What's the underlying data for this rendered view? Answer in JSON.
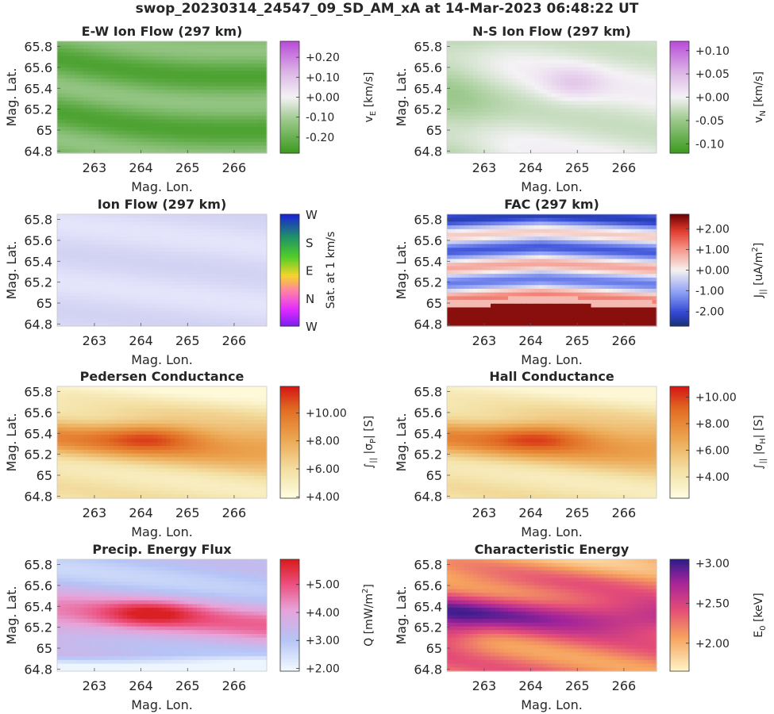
{
  "figure": {
    "title": "swop_20230314_24547_09_SD_AM_xA at 14-Mar-2023 06:48:22 UT"
  },
  "chart_data": [
    {
      "type": "heatmap",
      "title": "E-W Ion Flow (297 km)",
      "xlabel": "Mag. Lon.",
      "ylabel": "Mag. Lat.",
      "xlim": [
        262.2,
        266.7
      ],
      "ylim": [
        64.78,
        65.85
      ],
      "x_ticks": [
        263,
        264,
        265,
        266
      ],
      "y_ticks": [
        64.8,
        65,
        65.2,
        65.4,
        65.6,
        65.8
      ],
      "y_tick_labels": [
        "64.8",
        "65",
        "65.2",
        "65.4",
        "65.6",
        "65.8"
      ],
      "colorbar": {
        "label": "v_E [km/s]",
        "label_main": "v",
        "label_sub": "E",
        "label_suffix": " [km/s]",
        "range": [
          -0.28,
          0.28
        ],
        "ticks": [
          -0.2,
          -0.1,
          0,
          0.1,
          0.2
        ],
        "tick_labels": [
          "-0.20",
          "-0.10",
          "+0.00",
          "+0.10",
          "+0.20"
        ],
        "colormap": "green-white-purple"
      },
      "field": {
        "kind": "ewflow",
        "base": -0.19,
        "amp": 0.06
      }
    },
    {
      "type": "heatmap",
      "title": "N-S Ion Flow (297 km)",
      "xlabel": "Mag. Lon.",
      "ylabel": "Mag. Lat.",
      "xlim": [
        262.2,
        266.7
      ],
      "ylim": [
        64.78,
        65.85
      ],
      "x_ticks": [
        263,
        264,
        265,
        266
      ],
      "y_ticks": [
        64.8,
        65,
        65.2,
        65.4,
        65.6,
        65.8
      ],
      "y_tick_labels": [
        "64.8",
        "65",
        "65.2",
        "65.4",
        "65.6",
        "65.8"
      ],
      "colorbar": {
        "label": "v_N [km/s]",
        "label_main": "v",
        "label_sub": "N",
        "label_suffix": " [km/s]",
        "range": [
          -0.12,
          0.12
        ],
        "ticks": [
          -0.1,
          -0.05,
          0,
          0.05,
          0.1
        ],
        "tick_labels": [
          "-0.10",
          "-0.05",
          "+0.00",
          "+0.05",
          "+0.10"
        ],
        "colormap": "green-white-purple"
      },
      "field": {
        "kind": "nsflow",
        "base": -0.01,
        "amp": 0.03
      }
    },
    {
      "type": "heatmap",
      "title": "Ion Flow (297 km)",
      "xlabel": "Mag. Lon.",
      "ylabel": "Mag. Lat.",
      "xlim": [
        262.2,
        266.7
      ],
      "ylim": [
        64.78,
        65.85
      ],
      "x_ticks": [
        263,
        264,
        265,
        266
      ],
      "y_ticks": [
        64.8,
        65,
        65.2,
        65.4,
        65.6,
        65.8
      ],
      "y_tick_labels": [
        "64.8",
        "65",
        "65.2",
        "65.4",
        "65.6",
        "65.8"
      ],
      "colorbar": {
        "label": "Sat. at 1 km/s",
        "direction_labels": [
          "W",
          "N",
          "E",
          "S",
          "W"
        ],
        "colormap": "direction-wheel"
      },
      "field": {
        "kind": "direction",
        "tint": "#dcdcf6"
      }
    },
    {
      "type": "heatmap",
      "title": "FAC (297 km)",
      "xlabel": "Mag. Lon.",
      "ylabel": "Mag. Lat.",
      "xlim": [
        262.2,
        266.7
      ],
      "ylim": [
        64.78,
        65.85
      ],
      "x_ticks": [
        263,
        264,
        265,
        266
      ],
      "y_ticks": [
        64.8,
        65,
        65.2,
        65.4,
        65.6,
        65.8
      ],
      "y_tick_labels": [
        "64.8",
        "65",
        "65.2",
        "65.4",
        "65.6",
        "65.8"
      ],
      "colorbar": {
        "label": "J_|| [uA/m^2]",
        "label_main": "J",
        "label_sub": "||",
        "label_suffix": " [uA/m",
        "label_sup": "2",
        "label_end": "]",
        "range": [
          -2.7,
          2.7
        ],
        "ticks": [
          -2,
          -1,
          0,
          1,
          2
        ],
        "tick_labels": [
          "-2.00",
          "-1.00",
          "+0.00",
          "+1.00",
          "+2.00"
        ],
        "colormap": "blue-white-red"
      },
      "field": {
        "kind": "fac"
      }
    },
    {
      "type": "heatmap",
      "title": "Pedersen Conductance",
      "xlabel": "Mag. Lon.",
      "ylabel": "Mag. Lat.",
      "xlim": [
        262.2,
        266.7
      ],
      "ylim": [
        64.78,
        65.85
      ],
      "x_ticks": [
        263,
        264,
        265,
        266
      ],
      "y_ticks": [
        64.8,
        65,
        65.2,
        65.4,
        65.6,
        65.8
      ],
      "y_tick_labels": [
        "64.8",
        "65",
        "65.2",
        "65.4",
        "65.6",
        "65.8"
      ],
      "colorbar": {
        "label": "∫|| |σP| [S]",
        "label_main": "∫",
        "label_sub": "||",
        "label_suffix": " |σ",
        "label_sub2": "P",
        "label_end": "| [S]",
        "range": [
          3.9,
          11.9
        ],
        "ticks": [
          4,
          6,
          8,
          10
        ],
        "tick_labels": [
          "+4.00",
          "+6.00",
          "+8.00",
          "+10.00"
        ],
        "colormap": "yellow-orange-red"
      },
      "field": {
        "kind": "cond",
        "lo": 4.2,
        "hi": 11.5
      }
    },
    {
      "type": "heatmap",
      "title": "Hall Conductance",
      "xlabel": "Mag. Lon.",
      "ylabel": "Mag. Lat.",
      "xlim": [
        262.2,
        266.7
      ],
      "ylim": [
        64.78,
        65.85
      ],
      "x_ticks": [
        263,
        264,
        265,
        266
      ],
      "y_ticks": [
        64.8,
        65,
        65.2,
        65.4,
        65.6,
        65.8
      ],
      "y_tick_labels": [
        "64.8",
        "65",
        "65.2",
        "65.4",
        "65.6",
        "65.8"
      ],
      "colorbar": {
        "label": "∫|| |σH| [S]",
        "label_main": "∫",
        "label_sub": "||",
        "label_suffix": " |σ",
        "label_sub2": "H",
        "label_end": "| [S]",
        "range": [
          2.4,
          10.8
        ],
        "ticks": [
          4,
          6,
          8,
          10
        ],
        "tick_labels": [
          "+4.00",
          "+6.00",
          "+8.00",
          "+10.00"
        ],
        "colormap": "yellow-orange-red"
      },
      "field": {
        "kind": "cond",
        "lo": 2.8,
        "hi": 10.4
      }
    },
    {
      "type": "heatmap",
      "title": "Precip. Energy Flux",
      "xlabel": "Mag. Lon.",
      "ylabel": "Mag. Lat.",
      "xlim": [
        262.2,
        266.7
      ],
      "ylim": [
        64.78,
        65.85
      ],
      "x_ticks": [
        263,
        264,
        265,
        266
      ],
      "y_ticks": [
        64.8,
        65,
        65.2,
        65.4,
        65.6,
        65.8
      ],
      "y_tick_labels": [
        "64.8",
        "65",
        "65.2",
        "65.4",
        "65.6",
        "65.8"
      ],
      "colorbar": {
        "label": "Q [mW/m^2]",
        "label_main": "Q [mW/m",
        "label_sup": "2",
        "label_end": "]",
        "range": [
          1.9,
          5.9
        ],
        "ticks": [
          2,
          3,
          4,
          5
        ],
        "tick_labels": [
          "+2.00",
          "+3.00",
          "+4.00",
          "+5.00"
        ],
        "colormap": "white-blue-pink-red"
      },
      "field": {
        "kind": "flux",
        "lo": 2.0,
        "hi": 5.8
      }
    },
    {
      "type": "heatmap",
      "title": "Characteristic Energy",
      "xlabel": "Mag. Lon.",
      "ylabel": "Mag. Lat.",
      "xlim": [
        262.2,
        266.7
      ],
      "ylim": [
        64.78,
        65.85
      ],
      "x_ticks": [
        263,
        264,
        265,
        266
      ],
      "y_ticks": [
        64.8,
        65,
        65.2,
        65.4,
        65.6,
        65.8
      ],
      "y_tick_labels": [
        "64.8",
        "65",
        "65.2",
        "65.4",
        "65.6",
        "65.8"
      ],
      "colorbar": {
        "label": "E_0 [keV]",
        "label_main": "E",
        "label_sub": "0",
        "label_suffix": " [keV]",
        "range": [
          1.65,
          3.05
        ],
        "ticks": [
          2,
          2.5,
          3
        ],
        "tick_labels": [
          "+2.00",
          "+2.50",
          "+3.00"
        ],
        "colormap": "cream-orange-magenta-blue"
      },
      "field": {
        "kind": "energy",
        "lo": 1.8,
        "hi": 3.0
      }
    }
  ]
}
